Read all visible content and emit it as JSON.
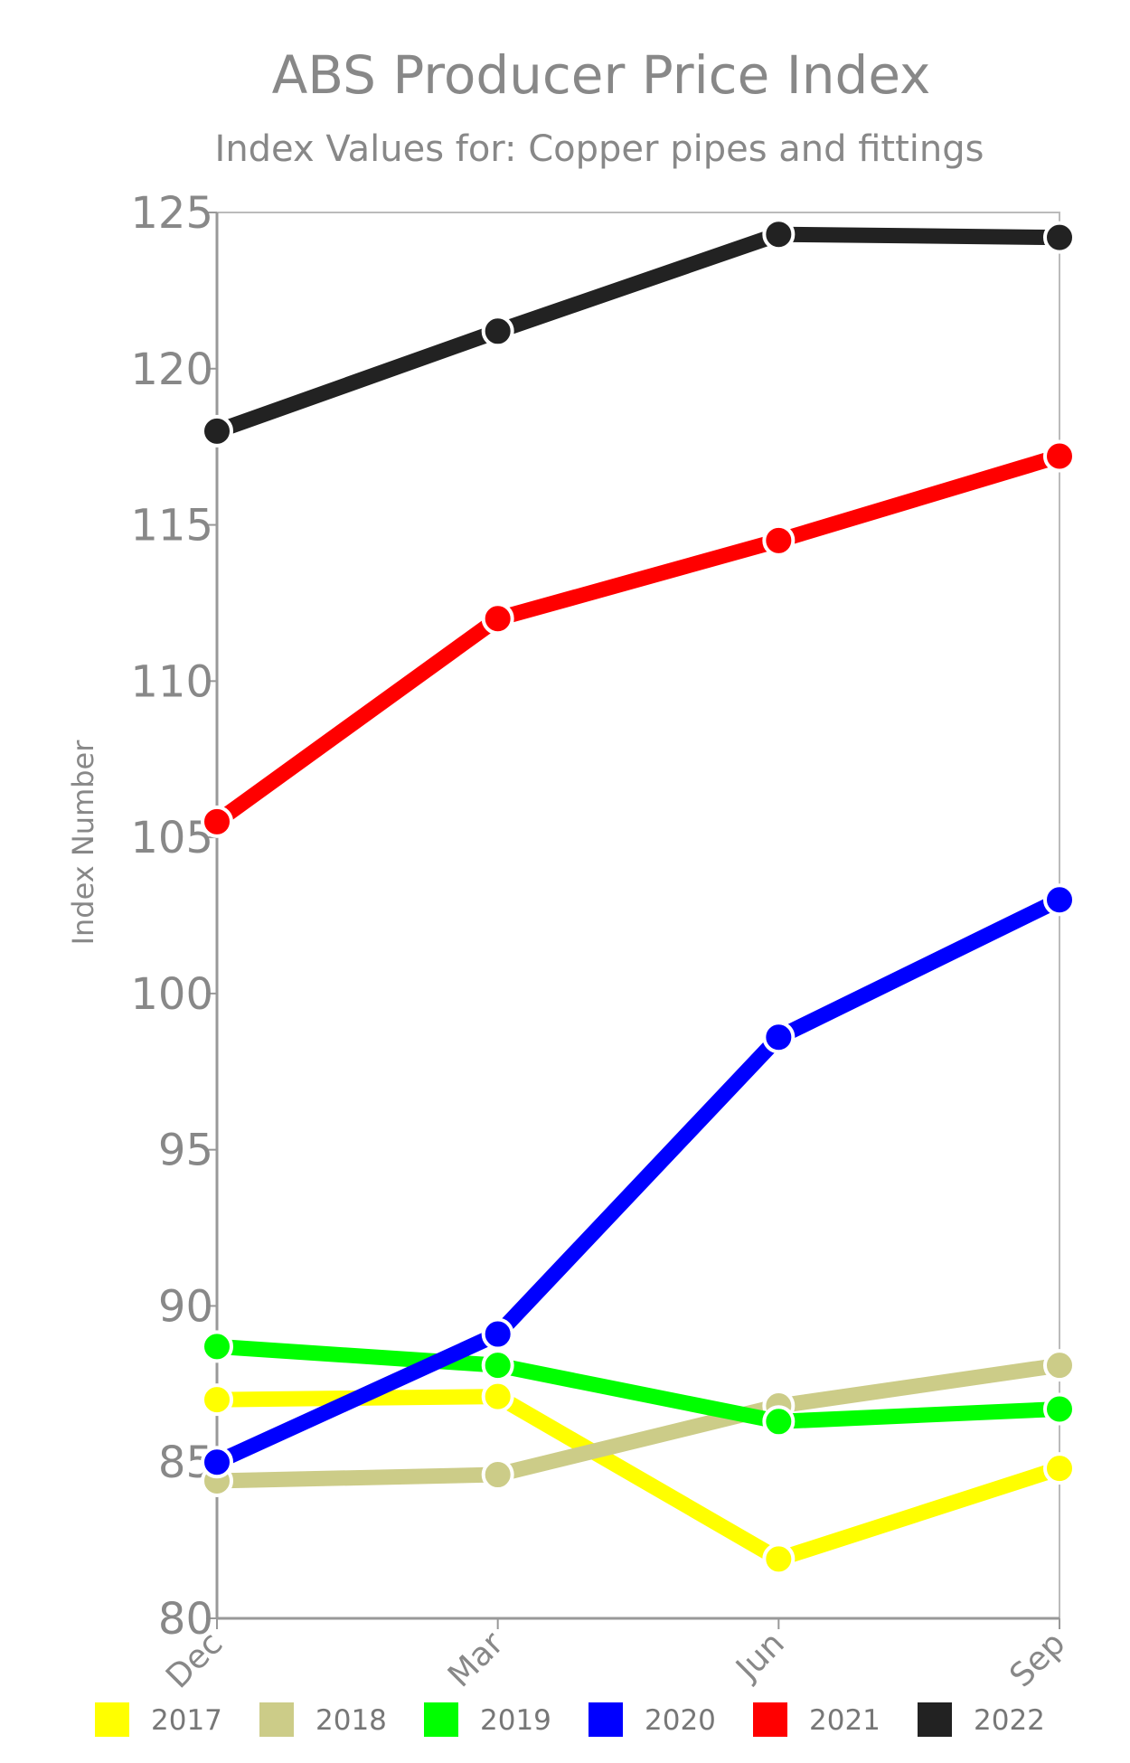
{
  "chart_data": {
    "type": "line",
    "title": "ABS Producer Price Index",
    "subtitle": "Index Values for: Copper pipes and fittings",
    "xlabel": "",
    "ylabel": "Index Number",
    "categories": [
      "Dec",
      "Mar",
      "Jun",
      "Sep"
    ],
    "ylim": [
      80,
      125
    ],
    "yticks": [
      80,
      85,
      90,
      95,
      100,
      105,
      110,
      115,
      120,
      125
    ],
    "grid": false,
    "legend_position": "bottom",
    "series": [
      {
        "name": "2017",
        "color": "#ffff00",
        "values": [
          87.0,
          87.1,
          81.9,
          84.8
        ]
      },
      {
        "name": "2018",
        "color": "#cccc88",
        "values": [
          84.4,
          84.6,
          86.8,
          88.1
        ]
      },
      {
        "name": "2019",
        "color": "#00ff00",
        "values": [
          88.7,
          88.1,
          86.3,
          86.7
        ]
      },
      {
        "name": "2020",
        "color": "#0000ff",
        "values": [
          85.0,
          89.1,
          98.6,
          103.0
        ]
      },
      {
        "name": "2021",
        "color": "#ff0000",
        "values": [
          105.5,
          112.0,
          114.5,
          117.2
        ]
      },
      {
        "name": "2022",
        "color": "#222222",
        "values": [
          118.0,
          121.2,
          124.3,
          124.2
        ]
      }
    ]
  }
}
